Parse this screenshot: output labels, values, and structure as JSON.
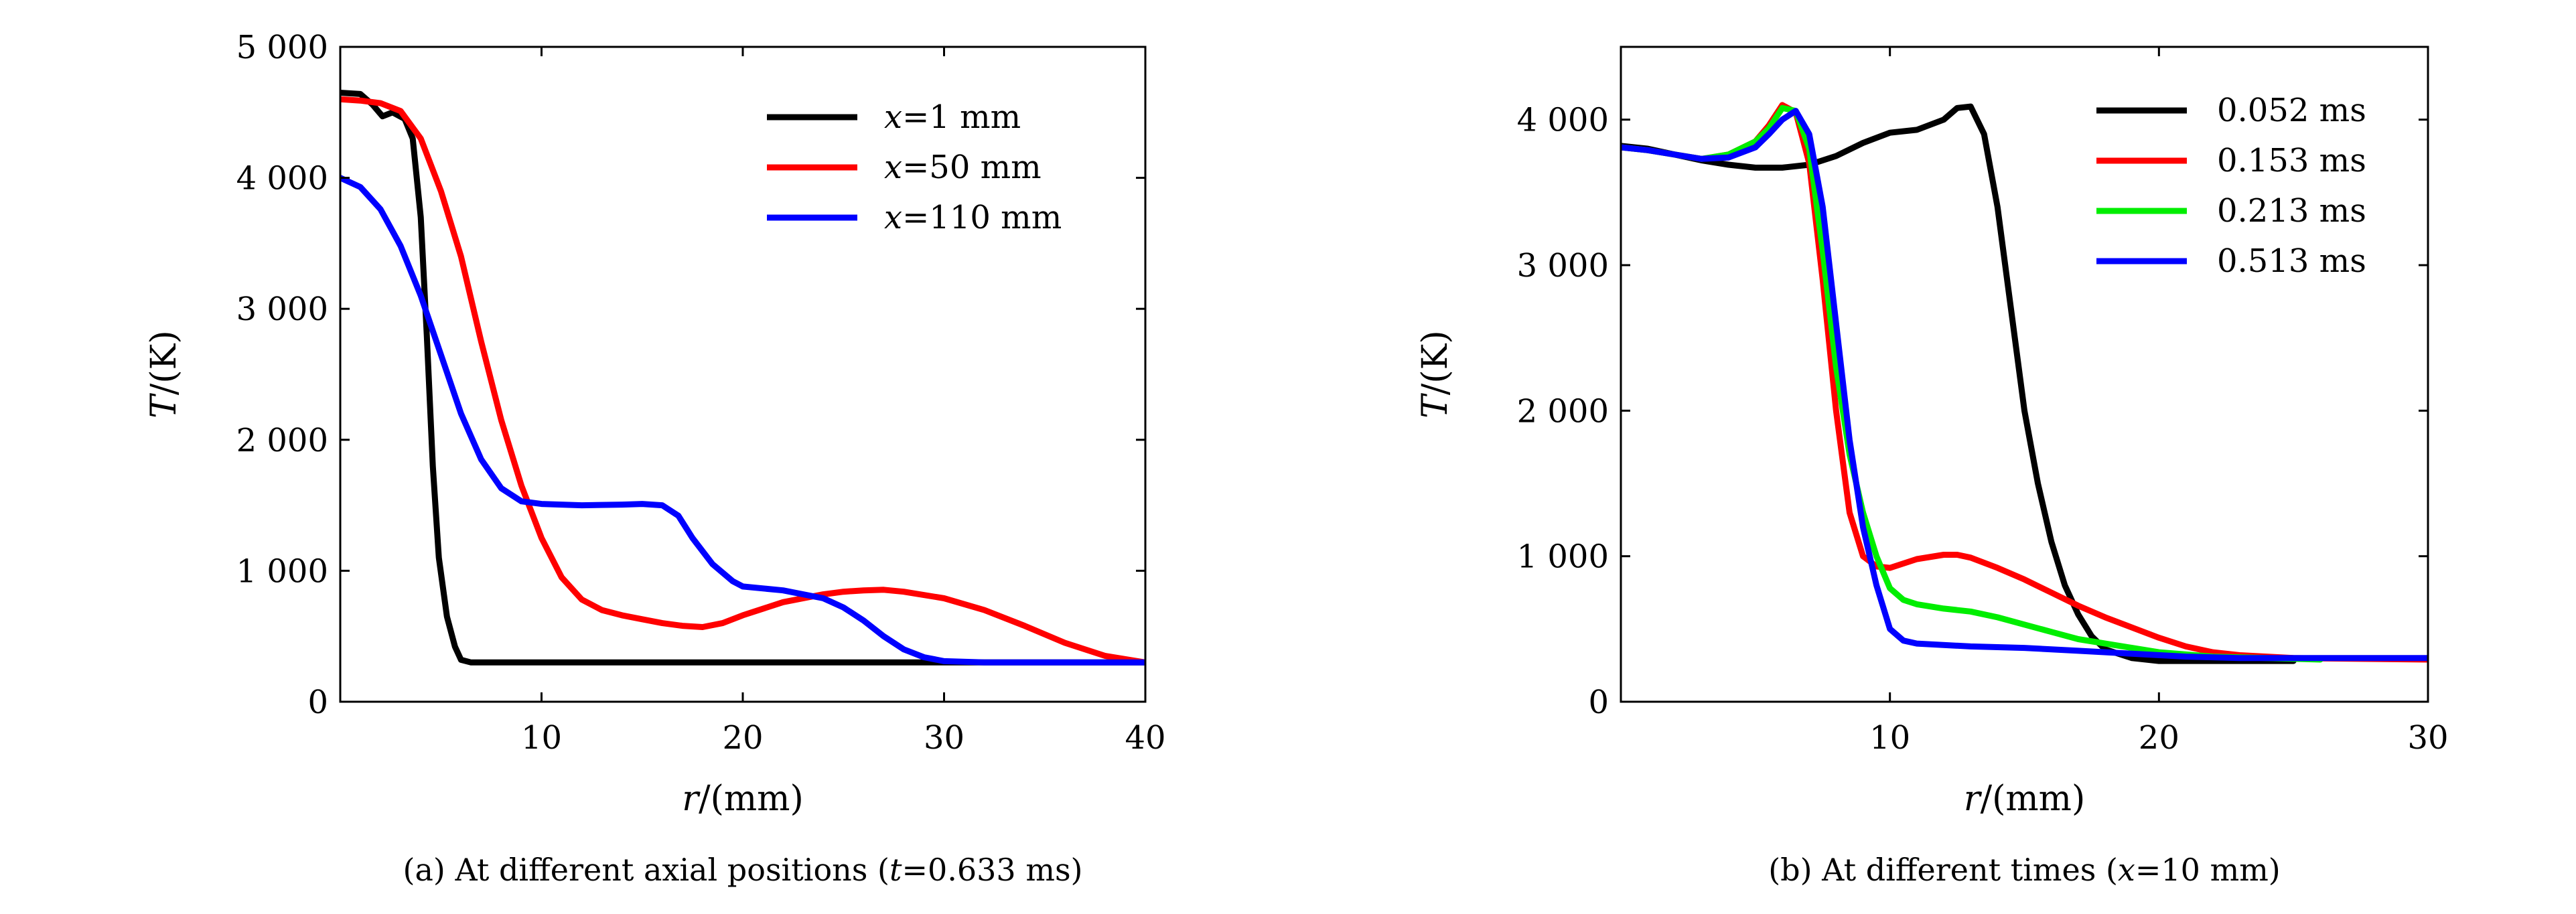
{
  "chart_data": [
    {
      "id": "a",
      "type": "line",
      "caption": {
        "pre": "(a) At different axial positions (",
        "var": "t",
        "post": "=0.633 ms)"
      },
      "xlabel": {
        "var": "r",
        "unit": "/(mm)"
      },
      "ylabel": {
        "var": "T",
        "unit": "/(K)"
      },
      "xlim": [
        0,
        40
      ],
      "ylim": [
        0,
        5000
      ],
      "xticks": [
        10,
        20,
        30,
        40
      ],
      "xtick_labels": [
        "10",
        "20",
        "30",
        "40"
      ],
      "yticks": [
        0,
        1000,
        2000,
        3000,
        4000,
        5000
      ],
      "ytick_labels": [
        "0",
        "1 000",
        "2 000",
        "3 000",
        "4 000",
        "5 000"
      ],
      "legend_position": "top-right",
      "grid": false,
      "series": [
        {
          "name": "x=1 mm",
          "legend_var": "x",
          "legend_rest": "=1 mm",
          "color": "#000000",
          "points": [
            [
              0,
              4650
            ],
            [
              1,
              4640
            ],
            [
              1.6,
              4560
            ],
            [
              2.1,
              4470
            ],
            [
              2.6,
              4500
            ],
            [
              3.2,
              4450
            ],
            [
              3.6,
              4300
            ],
            [
              4,
              3700
            ],
            [
              4.3,
              2800
            ],
            [
              4.6,
              1800
            ],
            [
              4.9,
              1100
            ],
            [
              5.3,
              650
            ],
            [
              5.7,
              420
            ],
            [
              6,
              320
            ],
            [
              6.5,
              300
            ],
            [
              10,
              300
            ],
            [
              20,
              300
            ],
            [
              30,
              300
            ],
            [
              40,
              300
            ]
          ]
        },
        {
          "name": "x=50 mm",
          "legend_var": "x",
          "legend_rest": "=50 mm",
          "color": "#ff0000",
          "points": [
            [
              0,
              4600
            ],
            [
              1,
              4590
            ],
            [
              2,
              4570
            ],
            [
              3,
              4510
            ],
            [
              4,
              4300
            ],
            [
              5,
              3900
            ],
            [
              6,
              3400
            ],
            [
              7,
              2750
            ],
            [
              8,
              2150
            ],
            [
              9,
              1650
            ],
            [
              10,
              1250
            ],
            [
              11,
              950
            ],
            [
              12,
              780
            ],
            [
              13,
              700
            ],
            [
              14,
              660
            ],
            [
              15,
              630
            ],
            [
              16,
              600
            ],
            [
              17,
              580
            ],
            [
              18,
              570
            ],
            [
              19,
              600
            ],
            [
              20,
              660
            ],
            [
              22,
              760
            ],
            [
              24,
              820
            ],
            [
              25,
              840
            ],
            [
              26,
              850
            ],
            [
              27,
              855
            ],
            [
              28,
              840
            ],
            [
              30,
              790
            ],
            [
              32,
              700
            ],
            [
              34,
              580
            ],
            [
              36,
              450
            ],
            [
              38,
              350
            ],
            [
              40,
              300
            ]
          ]
        },
        {
          "name": "x=110 mm",
          "legend_var": "x",
          "legend_rest": "=110 mm",
          "color": "#0000ff",
          "points": [
            [
              0,
              4000
            ],
            [
              1,
              3930
            ],
            [
              2,
              3760
            ],
            [
              3,
              3480
            ],
            [
              4,
              3100
            ],
            [
              5,
              2650
            ],
            [
              6,
              2200
            ],
            [
              7,
              1850
            ],
            [
              8,
              1630
            ],
            [
              9,
              1530
            ],
            [
              10,
              1510
            ],
            [
              12,
              1500
            ],
            [
              14,
              1505
            ],
            [
              15,
              1510
            ],
            [
              16,
              1500
            ],
            [
              16.8,
              1420
            ],
            [
              17.5,
              1250
            ],
            [
              18.5,
              1050
            ],
            [
              19.5,
              920
            ],
            [
              20,
              880
            ],
            [
              22,
              850
            ],
            [
              24,
              790
            ],
            [
              25,
              720
            ],
            [
              26,
              620
            ],
            [
              27,
              500
            ],
            [
              28,
              400
            ],
            [
              29,
              340
            ],
            [
              30,
              310
            ],
            [
              32,
              300
            ],
            [
              40,
              300
            ]
          ]
        }
      ]
    },
    {
      "id": "b",
      "type": "line",
      "caption": {
        "pre": "(b) At different times (",
        "var": "x",
        "post": "=10 mm)"
      },
      "xlabel": {
        "var": "r",
        "unit": "/(mm)"
      },
      "ylabel": {
        "var": "T",
        "unit": "/(K)"
      },
      "xlim": [
        0,
        30
      ],
      "ylim": [
        0,
        4500
      ],
      "xticks": [
        10,
        20,
        30
      ],
      "xtick_labels": [
        "10",
        "20",
        "30"
      ],
      "yticks": [
        0,
        1000,
        2000,
        3000,
        4000
      ],
      "ytick_labels": [
        "0",
        "1 000",
        "2 000",
        "3 000",
        "4 000"
      ],
      "legend_position": "top-right",
      "grid": false,
      "series": [
        {
          "name": "0.052 ms",
          "color": "#000000",
          "points": [
            [
              0,
              3820
            ],
            [
              1,
              3800
            ],
            [
              2,
              3760
            ],
            [
              3,
              3720
            ],
            [
              4,
              3690
            ],
            [
              5,
              3670
            ],
            [
              6,
              3670
            ],
            [
              7,
              3690
            ],
            [
              8,
              3750
            ],
            [
              9,
              3840
            ],
            [
              10,
              3910
            ],
            [
              11,
              3930
            ],
            [
              12,
              4000
            ],
            [
              12.5,
              4080
            ],
            [
              13,
              4090
            ],
            [
              13.5,
              3900
            ],
            [
              14,
              3400
            ],
            [
              14.5,
              2700
            ],
            [
              15,
              2000
            ],
            [
              15.5,
              1500
            ],
            [
              16,
              1100
            ],
            [
              16.5,
              800
            ],
            [
              17,
              600
            ],
            [
              17.5,
              450
            ],
            [
              18,
              360
            ],
            [
              19,
              300
            ],
            [
              20,
              280
            ],
            [
              22,
              280
            ],
            [
              25,
              280
            ]
          ]
        },
        {
          "name": "0.153 ms",
          "color": "#ff0000",
          "points": [
            [
              0,
              3810
            ],
            [
              1,
              3790
            ],
            [
              2,
              3760
            ],
            [
              3,
              3730
            ],
            [
              4,
              3760
            ],
            [
              5,
              3850
            ],
            [
              5.5,
              3960
            ],
            [
              6,
              4100
            ],
            [
              6.5,
              4050
            ],
            [
              7,
              3700
            ],
            [
              7.5,
              2900
            ],
            [
              8,
              2000
            ],
            [
              8.5,
              1300
            ],
            [
              9,
              1000
            ],
            [
              9.5,
              930
            ],
            [
              10,
              920
            ],
            [
              11,
              980
            ],
            [
              12,
              1010
            ],
            [
              12.5,
              1010
            ],
            [
              13,
              990
            ],
            [
              14,
              920
            ],
            [
              15,
              840
            ],
            [
              16,
              750
            ],
            [
              17,
              660
            ],
            [
              18,
              580
            ],
            [
              19,
              510
            ],
            [
              20,
              440
            ],
            [
              21,
              380
            ],
            [
              22,
              340
            ],
            [
              23,
              320
            ],
            [
              25,
              300
            ],
            [
              30,
              290
            ]
          ]
        },
        {
          "name": "0.213 ms",
          "color": "#00ee00",
          "points": [
            [
              0,
              3810
            ],
            [
              1,
              3790
            ],
            [
              2,
              3760
            ],
            [
              3,
              3730
            ],
            [
              4,
              3760
            ],
            [
              5,
              3850
            ],
            [
              5.5,
              3940
            ],
            [
              6,
              4080
            ],
            [
              6.5,
              4060
            ],
            [
              7,
              3800
            ],
            [
              7.5,
              3100
            ],
            [
              8,
              2300
            ],
            [
              8.5,
              1700
            ],
            [
              9,
              1300
            ],
            [
              9.5,
              1000
            ],
            [
              10,
              780
            ],
            [
              10.5,
              700
            ],
            [
              11,
              670
            ],
            [
              12,
              640
            ],
            [
              13,
              620
            ],
            [
              14,
              580
            ],
            [
              15,
              530
            ],
            [
              16,
              480
            ],
            [
              17,
              430
            ],
            [
              18,
              400
            ],
            [
              19,
              370
            ],
            [
              20,
              340
            ],
            [
              22,
              310
            ],
            [
              24,
              300
            ],
            [
              26,
              290
            ]
          ]
        },
        {
          "name": "0.513 ms",
          "color": "#0000ff",
          "points": [
            [
              0,
              3810
            ],
            [
              1,
              3790
            ],
            [
              2,
              3760
            ],
            [
              3,
              3730
            ],
            [
              4,
              3740
            ],
            [
              5,
              3810
            ],
            [
              5.5,
              3900
            ],
            [
              6,
              4000
            ],
            [
              6.5,
              4060
            ],
            [
              7,
              3900
            ],
            [
              7.5,
              3400
            ],
            [
              8,
              2600
            ],
            [
              8.5,
              1800
            ],
            [
              9,
              1200
            ],
            [
              9.5,
              800
            ],
            [
              10,
              500
            ],
            [
              10.5,
              420
            ],
            [
              11,
              400
            ],
            [
              13,
              380
            ],
            [
              15,
              370
            ],
            [
              17,
              350
            ],
            [
              19,
              330
            ],
            [
              21,
              310
            ],
            [
              23,
              300
            ],
            [
              26,
              300
            ],
            [
              28,
              300
            ],
            [
              30,
              300
            ]
          ]
        }
      ]
    }
  ]
}
